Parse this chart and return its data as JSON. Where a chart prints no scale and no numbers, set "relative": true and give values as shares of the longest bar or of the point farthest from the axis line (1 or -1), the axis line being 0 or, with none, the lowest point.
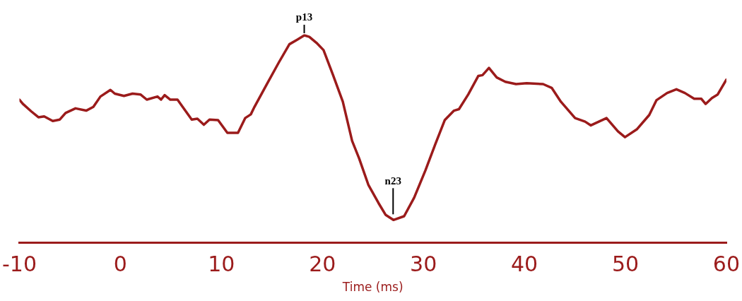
{
  "chart_data": {
    "type": "line",
    "relative": true,
    "xlabel": "Time (ms)",
    "xlim": [
      -10,
      60
    ],
    "xticks": [
      -10,
      0,
      10,
      20,
      30,
      40,
      50,
      60
    ],
    "marker": "none",
    "line_style": "solid",
    "legend": false,
    "grid": false,
    "annotations": [
      {
        "text": "p13",
        "x": 18.2,
        "y": 1.0
      },
      {
        "text": "n23",
        "x": 27,
        "y": 0.11
      }
    ],
    "series": [
      {
        "color": "#9b1b1b",
        "x": [
          -10,
          -9.67,
          -8.82,
          -8.12,
          -7.55,
          -6.7,
          -6.0,
          -5.43,
          -4.45,
          -3.39,
          -2.68,
          -1.98,
          -0.99,
          -0.56,
          0.35,
          1.2,
          1.98,
          2.61,
          3.67,
          4.02,
          4.38,
          4.94,
          5.65,
          7.06,
          7.62,
          8.26,
          8.82,
          9.67,
          10.59,
          11.64,
          12.35,
          12.91,
          13.27,
          14.47,
          15.67,
          16.73,
          17.5,
          18.21,
          18.7,
          19.41,
          20.11,
          21.03,
          22.02,
          22.94,
          23.64,
          24.56,
          25.55,
          26.25,
          27.03,
          28.09,
          29.08,
          30.2,
          31.19,
          32.11,
          33.03,
          33.52,
          34.44,
          35.43,
          35.85,
          36.49,
          37.26,
          38.11,
          39.17,
          40.23,
          41.85,
          42.7,
          43.61,
          45.02,
          46.01,
          46.58,
          48.13,
          49.26,
          49.96,
          51.16,
          52.36,
          53.07,
          54.13,
          55.05,
          55.89,
          56.81,
          57.52,
          57.94,
          58.57,
          59.14,
          59.99
        ],
        "values": [
          0.69,
          0.67,
          0.633,
          0.605,
          0.609,
          0.587,
          0.594,
          0.626,
          0.648,
          0.637,
          0.655,
          0.705,
          0.737,
          0.719,
          0.708,
          0.719,
          0.715,
          0.69,
          0.705,
          0.69,
          0.712,
          0.69,
          0.69,
          0.594,
          0.598,
          0.569,
          0.594,
          0.591,
          0.53,
          0.53,
          0.601,
          0.619,
          0.655,
          0.762,
          0.868,
          0.957,
          0.979,
          1.0,
          0.993,
          0.964,
          0.929,
          0.811,
          0.68,
          0.491,
          0.406,
          0.278,
          0.192,
          0.135,
          0.11,
          0.128,
          0.217,
          0.349,
          0.477,
          0.591,
          0.637,
          0.644,
          0.715,
          0.804,
          0.808,
          0.843,
          0.797,
          0.776,
          0.765,
          0.769,
          0.765,
          0.747,
          0.68,
          0.601,
          0.584,
          0.566,
          0.601,
          0.537,
          0.509,
          0.548,
          0.616,
          0.687,
          0.722,
          0.74,
          0.722,
          0.694,
          0.694,
          0.669,
          0.698,
          0.715,
          0.786
        ]
      }
    ]
  }
}
